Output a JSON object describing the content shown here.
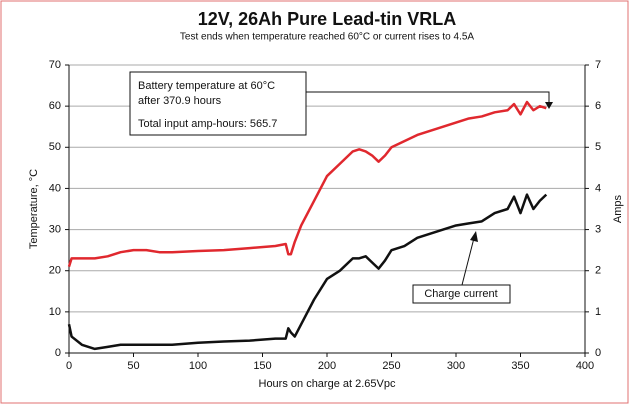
{
  "chart_data": {
    "type": "line",
    "title": "12V, 26Ah Pure Lead-tin VRLA",
    "subtitle": "Test ends when temperature reached 60°C or current rises to 4.5A",
    "x_label": "Hours on charge at 2.65Vpc",
    "y_label": "Temperature, °C",
    "y2_label": "Amps",
    "x": [
      0,
      2,
      10,
      20,
      30,
      40,
      50,
      60,
      70,
      80,
      100,
      120,
      140,
      160,
      168,
      170,
      172,
      175,
      180,
      190,
      200,
      210,
      220,
      225,
      230,
      235,
      240,
      245,
      250,
      260,
      270,
      280,
      290,
      300,
      310,
      320,
      330,
      340,
      345,
      350,
      355,
      360,
      365,
      370
    ],
    "series": [
      {
        "color": "#e0282e",
        "values": [
          21,
          23,
          23,
          23,
          23.5,
          24.5,
          25,
          25,
          24.5,
          24.5,
          24.8,
          25,
          25.5,
          26,
          26.5,
          24,
          24,
          27,
          31,
          37,
          43,
          46,
          49,
          49.5,
          49,
          48,
          46.5,
          48,
          50,
          51.5,
          53,
          54,
          55,
          56,
          57,
          57.5,
          58.5,
          59,
          60.5,
          58,
          61,
          59,
          60,
          59.5
        ]
      },
      {
        "name": "Charge current",
        "color": "#111111",
        "axis": "y2",
        "values": [
          0.7,
          0.4,
          0.2,
          0.1,
          0.15,
          0.2,
          0.2,
          0.2,
          0.2,
          0.2,
          0.25,
          0.28,
          0.3,
          0.35,
          0.35,
          0.6,
          0.5,
          0.4,
          0.7,
          1.3,
          1.8,
          2.0,
          2.3,
          2.3,
          2.35,
          2.2,
          2.05,
          2.25,
          2.5,
          2.6,
          2.8,
          2.9,
          3.0,
          3.1,
          3.15,
          3.2,
          3.4,
          3.5,
          3.8,
          3.4,
          3.85,
          3.5,
          3.7,
          3.85
        ]
      }
    ],
    "annotations": [
      "Battery temperature at 60°C",
      "after 370.9 hours",
      "Total input amp-hours: 565.7"
    ],
    "xlim": [
      0,
      400
    ],
    "xticks": [
      0,
      50,
      100,
      150,
      200,
      250,
      300,
      350,
      400
    ],
    "ylim": [
      0,
      70
    ],
    "yticks": [
      0,
      10,
      20,
      30,
      40,
      50,
      60,
      70
    ],
    "y2lim": [
      0,
      7
    ],
    "y2ticks": [
      0,
      1,
      2,
      3,
      4,
      5,
      6,
      7
    ],
    "grid": true
  }
}
